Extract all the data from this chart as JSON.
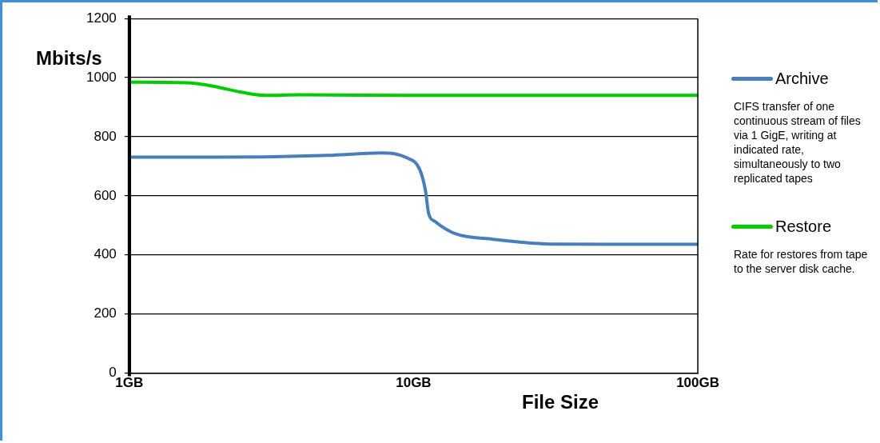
{
  "chart_data": {
    "type": "line",
    "xlabel": "File Size",
    "ylabel": "Mbits/s",
    "log": "x",
    "grid": "y",
    "legend": "right",
    "marker": "none",
    "line_style": "solid",
    "xlim": [
      1,
      100
    ],
    "xticks": [
      {
        "value": 1,
        "label": "1GB"
      },
      {
        "value": 10,
        "label": "10GB"
      },
      {
        "value": 100,
        "label": "100GB"
      }
    ],
    "ylim": [
      0,
      1200
    ],
    "yticks": [
      0,
      200,
      400,
      600,
      800,
      1000,
      1200
    ],
    "series": [
      {
        "name": "Archive",
        "color": "#4a7ebb",
        "x": [
          1,
          2,
          3,
          5,
          7.7,
          9.5,
          10.5,
          11,
          11.3,
          11.9,
          14,
          19,
          30,
          50,
          100
        ],
        "values": [
          731,
          731,
          732,
          737,
          745,
          728,
          690,
          620,
          540,
          513,
          472,
          453,
          437,
          436,
          436
        ]
      },
      {
        "name": "Restore",
        "color": "#00cc00",
        "x": [
          1,
          1.6,
          2,
          2.5,
          3,
          4,
          10,
          100
        ],
        "values": [
          985,
          983,
          970,
          950,
          940,
          942,
          940,
          940
        ]
      }
    ],
    "annotations": [
      "CIFS transfer of one continuous stream of files via 1 GigE, writing at indicated rate, simultaneously to two replicated tapes",
      "Rate for restores from tape to the server disk cache."
    ]
  }
}
